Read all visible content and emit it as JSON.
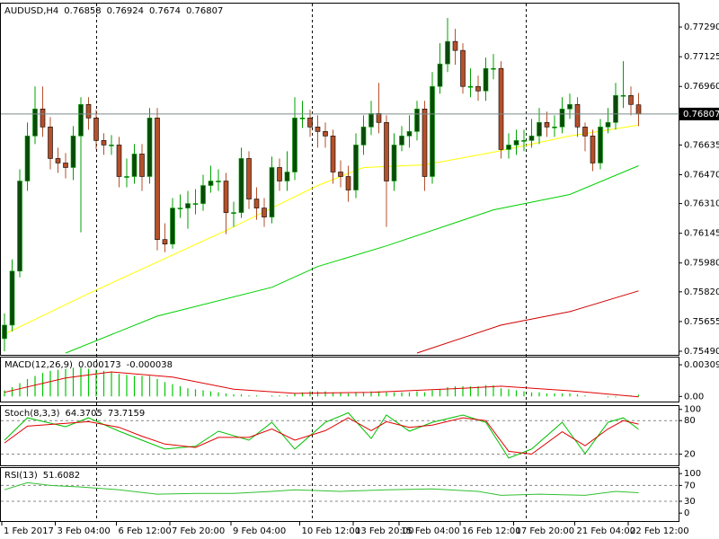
{
  "chart_data": [
    {
      "type": "candlestick",
      "title": "AUDUSD,H4",
      "bull_color": "#0b4a0b",
      "bear_color": "#b5502a",
      "wick_color": "#00a000",
      "open": [
        0.7556,
        0.75635,
        0.75935,
        0.76435,
        0.76685,
        0.76835,
        0.76735,
        0.7656,
        0.76535,
        0.7651,
        0.76685,
        0.7686,
        0.76785,
        0.7666,
        0.76635,
        0.76635,
        0.7646,
        0.7646,
        0.76585,
        0.7646,
        0.76785,
        0.7611,
        0.76085,
        0.76285,
        0.76285,
        0.7631,
        0.7631,
        0.7641,
        0.76435,
        0.76435,
        0.7626,
        0.7626,
        0.7656,
        0.76335,
        0.76285,
        0.76235,
        0.7651,
        0.76435,
        0.76485,
        0.76785,
        0.76785,
        0.76735,
        0.7671,
        0.76685,
        0.76485,
        0.7646,
        0.76385,
        0.76635,
        0.76735,
        0.7681,
        0.7676,
        0.76435,
        0.76635,
        0.76685,
        0.7671,
        0.76835,
        0.7646,
        0.7696,
        0.77085,
        0.7721,
        0.7716,
        0.7696,
        0.7696,
        0.76935,
        0.7706,
        0.7706,
        0.7661,
        0.76635,
        0.7666,
        0.7666,
        0.76685,
        0.7676,
        0.76735,
        0.76735,
        0.76835,
        0.7686,
        0.76735,
        0.76685,
        0.76535,
        0.76735,
        0.7676,
        0.7691,
        0.7691,
        0.76858
      ],
      "high": [
        0.757,
        0.76,
        0.765,
        0.7676,
        0.7696,
        0.7696,
        0.7679,
        0.7662,
        0.7659,
        0.7674,
        0.769,
        0.769,
        0.7683,
        0.767,
        0.7669,
        0.7668,
        0.7656,
        0.7664,
        0.7664,
        0.7684,
        0.7684,
        0.762,
        0.7634,
        0.7636,
        0.7638,
        0.7639,
        0.7647,
        0.7652,
        0.765,
        0.7648,
        0.7632,
        0.7662,
        0.766,
        0.764,
        0.7634,
        0.7657,
        0.7656,
        0.766,
        0.769,
        0.7688,
        0.7683,
        0.768,
        0.7676,
        0.7672,
        0.7655,
        0.7652,
        0.767,
        0.768,
        0.7688,
        0.7698,
        0.768,
        0.767,
        0.7674,
        0.768,
        0.7688,
        0.7688,
        0.7704,
        0.772,
        0.7734,
        0.7728,
        0.772,
        0.7706,
        0.7702,
        0.7712,
        0.7714,
        0.771,
        0.767,
        0.7672,
        0.7672,
        0.7678,
        0.7684,
        0.7682,
        0.768,
        0.769,
        0.7692,
        0.769,
        0.7676,
        0.7672,
        0.7678,
        0.7684,
        0.7698,
        0.771,
        0.7696,
        0.76924
      ],
      "low": [
        0.7549,
        0.756,
        0.759,
        0.7638,
        0.7664,
        0.7668,
        0.765,
        0.7648,
        0.7645,
        0.7644,
        0.7615,
        0.7672,
        0.7661,
        0.7658,
        0.7658,
        0.764,
        0.764,
        0.7642,
        0.7638,
        0.7642,
        0.7605,
        0.7604,
        0.7606,
        0.7623,
        0.7617,
        0.7625,
        0.7627,
        0.7637,
        0.7638,
        0.7614,
        0.7618,
        0.7623,
        0.7628,
        0.7622,
        0.7618,
        0.762,
        0.7638,
        0.7638,
        0.7644,
        0.7673,
        0.7668,
        0.7662,
        0.7662,
        0.7642,
        0.764,
        0.7632,
        0.7634,
        0.7658,
        0.7669,
        0.767,
        0.7618,
        0.7638,
        0.766,
        0.7662,
        0.7666,
        0.7638,
        0.7642,
        0.7692,
        0.7704,
        0.7708,
        0.7692,
        0.769,
        0.7688,
        0.7688,
        0.77,
        0.7656,
        0.7656,
        0.7658,
        0.766,
        0.7662,
        0.7664,
        0.7668,
        0.7668,
        0.767,
        0.7678,
        0.7668,
        0.766,
        0.7649,
        0.765,
        0.767,
        0.7672,
        0.7684,
        0.768,
        0.7674
      ],
      "close": [
        0.75635,
        0.75935,
        0.76435,
        0.76685,
        0.76835,
        0.76735,
        0.7656,
        0.76535,
        0.7651,
        0.76685,
        0.7686,
        0.76785,
        0.7666,
        0.76635,
        0.76635,
        0.7646,
        0.7646,
        0.76585,
        0.7646,
        0.76785,
        0.7611,
        0.76085,
        0.76285,
        0.76285,
        0.7631,
        0.7631,
        0.7641,
        0.76435,
        0.76435,
        0.7626,
        0.7626,
        0.7656,
        0.76335,
        0.76285,
        0.76235,
        0.7651,
        0.76435,
        0.76485,
        0.76785,
        0.76785,
        0.76735,
        0.7671,
        0.76685,
        0.76485,
        0.7646,
        0.76385,
        0.76635,
        0.76735,
        0.7681,
        0.7676,
        0.76435,
        0.76635,
        0.76685,
        0.7671,
        0.76835,
        0.7646,
        0.7696,
        0.77085,
        0.7721,
        0.7716,
        0.7696,
        0.7696,
        0.76935,
        0.7706,
        0.7706,
        0.7661,
        0.76635,
        0.7666,
        0.7666,
        0.76685,
        0.7676,
        0.76735,
        0.76735,
        0.76835,
        0.7686,
        0.76735,
        0.76685,
        0.76535,
        0.76735,
        0.7676,
        0.7691,
        0.7691,
        0.7686,
        0.76807
      ],
      "ma_lines": [
        {
          "color": "#ffff00",
          "x": [
            0,
            11,
            20,
            29,
            35,
            41,
            47,
            55,
            64,
            74,
            83
          ],
          "values": [
            0.75585,
            0.7581,
            0.75985,
            0.7616,
            0.76285,
            0.7641,
            0.7651,
            0.76525,
            0.76595,
            0.76685,
            0.76745
          ]
        },
        {
          "color": "#00d000",
          "x": [
            8,
            20,
            35,
            41,
            50,
            64,
            74,
            83
          ],
          "values": [
            0.7548,
            0.75685,
            0.75845,
            0.7596,
            0.76075,
            0.76275,
            0.7636,
            0.7652
          ]
        },
        {
          "color": "#d00000",
          "x": [
            54,
            65,
            74,
            83
          ],
          "values": [
            0.7548,
            0.75635,
            0.7571,
            0.75825
          ]
        }
      ],
      "ylim": [
        0.7547,
        0.7742
      ],
      "yticks": [
        {
          "value": 0.7729,
          "label": "0.77290"
        },
        0.77125,
        {
          "value": 0.7696,
          "label": "0.76960"
        },
        0.76635,
        {
          "value": 0.7647,
          "label": "0.76470"
        },
        {
          "value": 0.7631,
          "label": "0.76310"
        },
        0.76145,
        {
          "value": 0.7598,
          "label": "0.75980"
        },
        {
          "value": 0.7582,
          "label": "0.75820"
        },
        0.75655,
        {
          "value": 0.7549,
          "label": "0.75490"
        }
      ],
      "xticks": [
        {
          "value": 0,
          "label": "1 Feb 2017"
        },
        {
          "value": 7,
          "label": "3 Feb 04:00"
        },
        {
          "value": 15,
          "label": "6 Feb 12:00"
        },
        {
          "value": 22,
          "label": "7 Feb 20:00"
        },
        {
          "value": 30,
          "label": "9 Feb 04:00"
        },
        {
          "value": 39,
          "label": "10 Feb 12:00"
        },
        {
          "value": 46,
          "label": "13 Feb 20:00"
        },
        {
          "value": 52,
          "label": "15 Feb 04:00"
        },
        {
          "value": 60,
          "label": "16 Feb 12:00"
        },
        {
          "value": 67,
          "label": "17 Feb 20:00"
        },
        {
          "value": 75,
          "label": "21 Feb 04:00"
        },
        {
          "value": 82,
          "label": "22 Feb 12:00"
        }
      ]
    },
    {
      "type": "bar",
      "title": "MACD(12,26,9)",
      "color": "#00c800",
      "values": [
        0.0006,
        0.0009,
        0.0013,
        0.0017,
        0.002,
        0.0023,
        0.0025,
        0.0026,
        0.0027,
        0.0028,
        0.0028,
        0.0027,
        0.0026,
        0.0025,
        0.0024,
        0.0022,
        0.0021,
        0.002,
        0.002,
        0.002,
        0.0017,
        0.0014,
        0.0012,
        0.001,
        0.0008,
        0.0007,
        0.0006,
        0.0005,
        0.0004,
        0.0003,
        0.0002,
        0.0002,
        0.0001,
        0.0001,
        0.0,
        0.0001,
        0.0001,
        0.0001,
        0.0003,
        0.0004,
        0.0005,
        0.0005,
        0.0005,
        0.0004,
        0.0004,
        0.0003,
        0.0004,
        0.0004,
        0.0005,
        0.0005,
        0.0004,
        0.0004,
        0.0004,
        0.0004,
        0.0005,
        0.0004,
        0.0006,
        0.0007,
        0.0009,
        0.001,
        0.001,
        0.001,
        0.001,
        0.0011,
        0.0011,
        0.0008,
        0.0007,
        0.0006,
        0.0005,
        0.0004,
        0.0004,
        0.0003,
        0.0003,
        0.0003,
        0.0003,
        0.0002,
        0.0001,
        0.0,
        0.0,
        -0.0001,
        -0.0001,
        0.0,
        0.0001,
        0.000173
      ],
      "signal": {
        "color": "#e00000",
        "x": [
          0,
          8,
          14,
          22,
          30,
          38,
          48,
          60,
          65,
          75,
          83
        ],
        "values": [
          0.0004,
          0.0018,
          0.0024,
          0.0019,
          0.0007,
          0.0003,
          0.0004,
          0.0008,
          0.001,
          0.0005,
          -3.8e-05
        ]
      },
      "ylim": [
        -0.0005,
        0.0038
      ],
      "yticks": [
        0.003093,
        {
          "value": 0,
          "label": "0.00"
        }
      ]
    },
    {
      "type": "line",
      "title": "Stoch(8,3,3)",
      "series": [
        {
          "color": "#00c000",
          "x": [
            0,
            3,
            8,
            11,
            15,
            18,
            21,
            25,
            28,
            32,
            35,
            38,
            42,
            45,
            48,
            50,
            53,
            56,
            60,
            63,
            66,
            69,
            73,
            76,
            79,
            81,
            83
          ],
          "values": [
            45,
            85,
            69,
            85,
            61,
            45,
            29,
            34,
            61,
            45,
            77,
            29,
            77,
            94,
            48,
            90,
            61,
            77,
            90,
            77,
            13,
            29,
            77,
            21,
            77,
            85,
            64.3705
          ]
        },
        {
          "color": "#e00000",
          "x": [
            0,
            3,
            8,
            11,
            15,
            18,
            21,
            25,
            28,
            32,
            35,
            38,
            42,
            45,
            48,
            50,
            53,
            56,
            60,
            63,
            66,
            69,
            73,
            76,
            79,
            81,
            83
          ],
          "values": [
            40,
            70,
            75,
            78,
            68,
            52,
            38,
            32,
            50,
            50,
            65,
            45,
            62,
            85,
            62,
            78,
            68,
            72,
            85,
            80,
            25,
            20,
            60,
            35,
            65,
            80,
            73.7159
          ]
        }
      ],
      "levels": [
        80,
        20
      ],
      "ylim": [
        0,
        106
      ],
      "yticks": [
        100,
        80,
        20
      ]
    },
    {
      "type": "line",
      "title": "RSI(13)",
      "series": [
        {
          "color": "#30c030",
          "x": [
            0,
            3,
            6,
            10,
            15,
            20,
            25,
            30,
            35,
            38,
            44,
            50,
            56,
            62,
            65,
            70,
            76,
            80,
            83
          ],
          "values": [
            59,
            77,
            70,
            66,
            59,
            48,
            50,
            50,
            55,
            59,
            55,
            59,
            61,
            55,
            45,
            48,
            45,
            55,
            51.6082
          ]
        }
      ],
      "levels": [
        70,
        30
      ],
      "ylim": [
        -20,
        114
      ],
      "yticks": [
        100,
        70,
        30,
        0
      ]
    }
  ]
}
